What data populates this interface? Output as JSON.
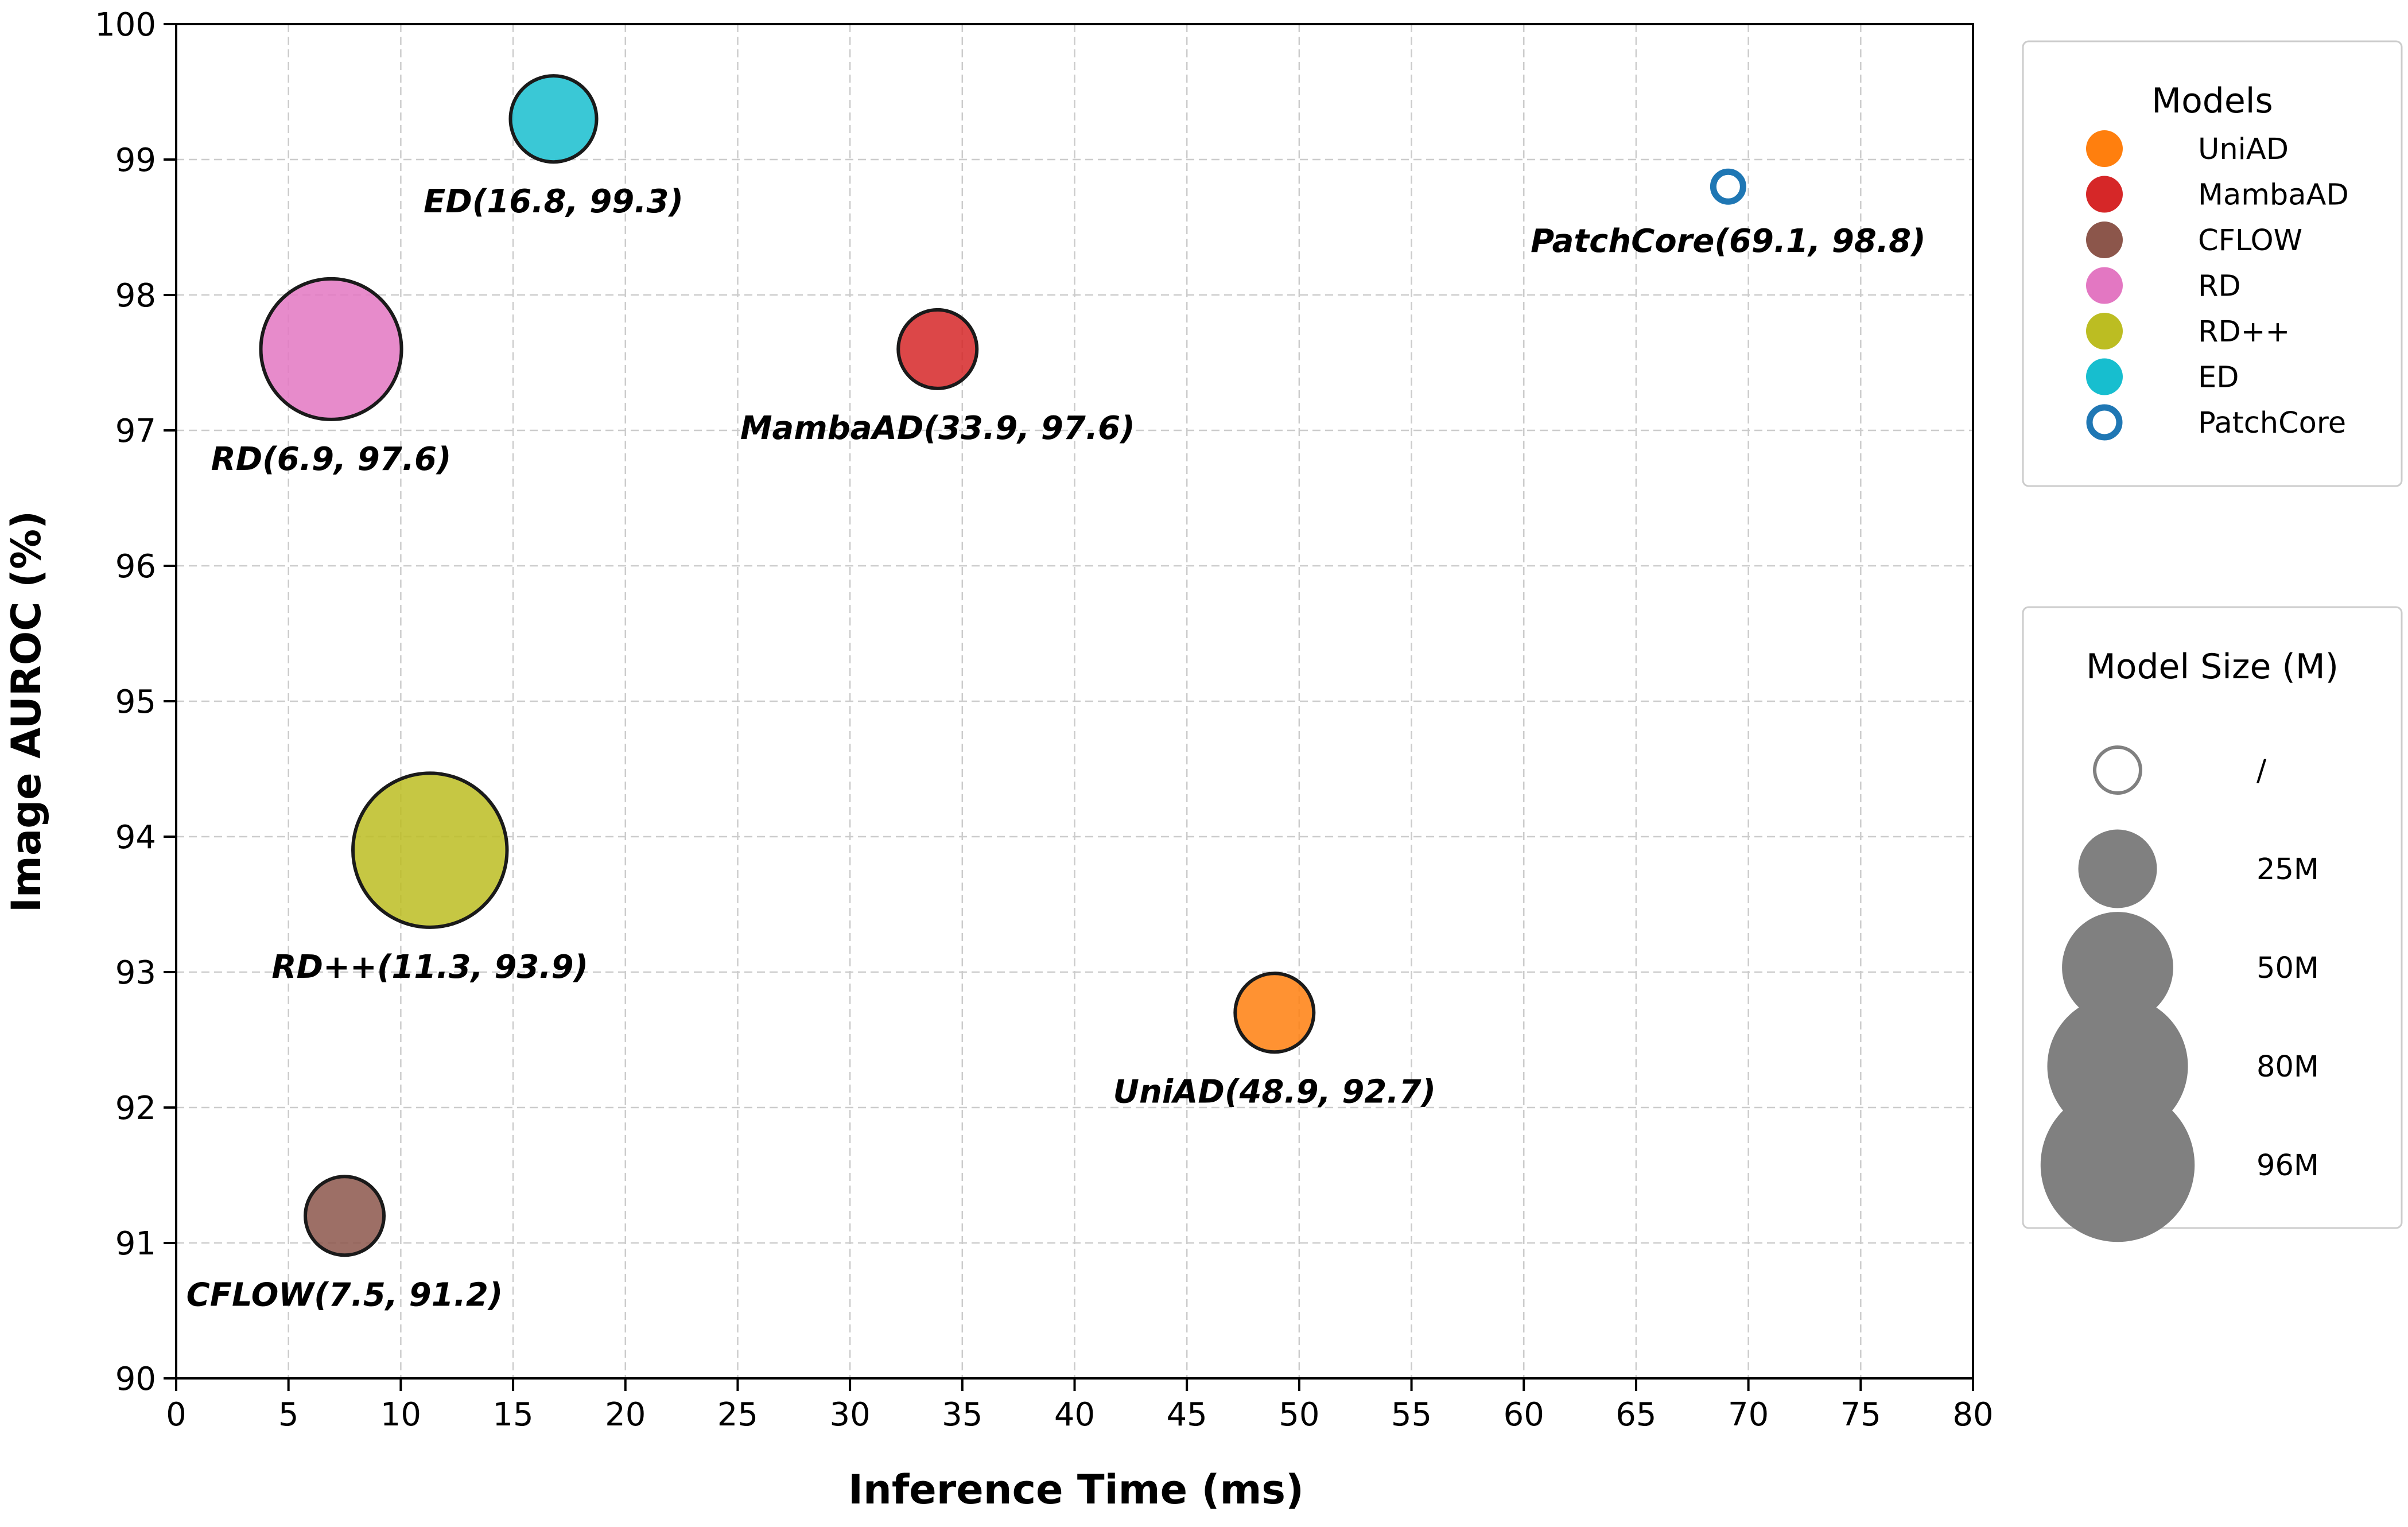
{
  "chart_data": {
    "type": "scatter",
    "xlabel": "Inference Time (ms)",
    "ylabel": "Image AUROC (%)",
    "xlim": [
      0,
      80
    ],
    "ylim": [
      90,
      100
    ],
    "x_ticks": [
      "0",
      "5",
      "10",
      "15",
      "20",
      "25",
      "30",
      "35",
      "40",
      "45",
      "50",
      "55",
      "60",
      "65",
      "70",
      "75",
      "80"
    ],
    "y_ticks": [
      "90",
      "91",
      "92",
      "93",
      "94",
      "95",
      "96",
      "97",
      "98",
      "99",
      "100"
    ],
    "grid": true,
    "points": [
      {
        "name": "UniAD",
        "x": 48.9,
        "y": 92.7,
        "size": 25,
        "color": "#ff7f0e",
        "hollow": false,
        "label": "UniAD(48.9, 92.7)",
        "label_pos": "below"
      },
      {
        "name": "MambaAD",
        "x": 33.9,
        "y": 97.6,
        "size": 25,
        "color": "#d62728",
        "hollow": false,
        "label": "MambaAD(33.9, 97.6)",
        "label_pos": "below"
      },
      {
        "name": "CFLOW",
        "x": 7.5,
        "y": 91.2,
        "size": 25,
        "color": "#8c564b",
        "hollow": false,
        "label": "CFLOW(7.5, 91.2)",
        "label_pos": "below"
      },
      {
        "name": "RD",
        "x": 6.9,
        "y": 97.6,
        "size": 80,
        "color": "#e377c2",
        "hollow": false,
        "label": "RD(6.9, 97.6)",
        "label_pos": "below"
      },
      {
        "name": "RD++",
        "x": 11.3,
        "y": 93.9,
        "size": 96,
        "color": "#bcbd22",
        "hollow": false,
        "label": "RD++(11.3, 93.9)",
        "label_pos": "below"
      },
      {
        "name": "ED",
        "x": 16.8,
        "y": 99.3,
        "size": 30,
        "color": "#17becf",
        "hollow": false,
        "label": "ED(16.8, 99.3)",
        "label_pos": "below"
      },
      {
        "name": "PatchCore",
        "x": 69.1,
        "y": 98.8,
        "size": null,
        "color": "#1f77b4",
        "hollow": true,
        "label": "PatchCore(69.1, 98.8)",
        "label_pos": "below"
      }
    ],
    "legends": {
      "models": {
        "title": "Models",
        "entries": [
          {
            "label": "UniAD",
            "color": "#ff7f0e",
            "hollow": false
          },
          {
            "label": "MambaAD",
            "color": "#d62728",
            "hollow": false
          },
          {
            "label": "CFLOW",
            "color": "#8c564b",
            "hollow": false
          },
          {
            "label": "RD",
            "color": "#e377c2",
            "hollow": false
          },
          {
            "label": "RD++",
            "color": "#bcbd22",
            "hollow": false
          },
          {
            "label": "ED",
            "color": "#17becf",
            "hollow": false
          },
          {
            "label": "PatchCore",
            "color": "#1f77b4",
            "hollow": true
          }
        ]
      },
      "sizes": {
        "title": "Model Size (M)",
        "entries": [
          {
            "label": "/",
            "size": null
          },
          {
            "label": "25M",
            "size": 25
          },
          {
            "label": "50M",
            "size": 50
          },
          {
            "label": "80M",
            "size": 80
          },
          {
            "label": "96M",
            "size": 96
          }
        ],
        "marker_color": "#808080"
      }
    }
  }
}
